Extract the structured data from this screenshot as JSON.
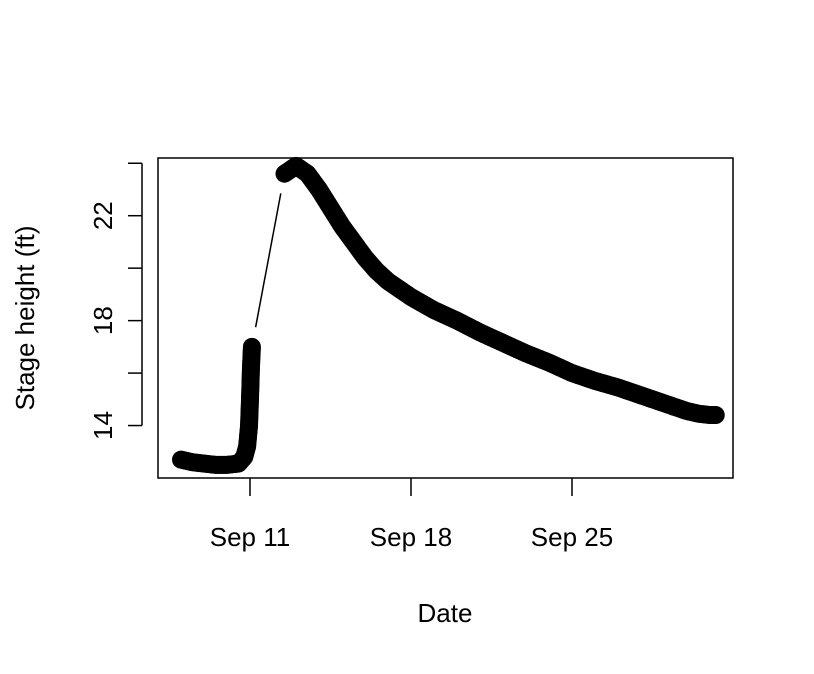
{
  "chart_data": {
    "type": "scatter",
    "xlabel": "Date",
    "ylabel": "Stage height (ft)",
    "x_unit": "date",
    "xlim": [
      "2017-09-07",
      "2017-10-02"
    ],
    "ylim": [
      12,
      24.2
    ],
    "x_ticks": [
      {
        "date": "2017-09-11",
        "label": "Sep 11"
      },
      {
        "date": "2017-09-18",
        "label": "Sep 18"
      },
      {
        "date": "2017-09-25",
        "label": "Sep 25"
      }
    ],
    "y_ticks": [
      {
        "value": 14,
        "label": "14"
      },
      {
        "value": 16,
        "label": ""
      },
      {
        "value": 18,
        "label": "18"
      },
      {
        "value": 20,
        "label": ""
      },
      {
        "value": 22,
        "label": "22"
      },
      {
        "value": 24,
        "label": ""
      }
    ],
    "grid": false,
    "legend": "none",
    "series": [
      {
        "points": [
          {
            "x": "2017-09-08 00:00",
            "y": 12.7
          },
          {
            "x": "2017-09-08 12:00",
            "y": 12.6
          },
          {
            "x": "2017-09-09 00:00",
            "y": 12.55
          },
          {
            "x": "2017-09-09 12:00",
            "y": 12.5
          },
          {
            "x": "2017-09-10 00:00",
            "y": 12.5
          },
          {
            "x": "2017-09-10 12:00",
            "y": 12.55
          },
          {
            "x": "2017-09-10 18:00",
            "y": 12.8
          },
          {
            "x": "2017-09-10 21:00",
            "y": 13.2
          },
          {
            "x": "2017-09-10 23:00",
            "y": 14.0
          },
          {
            "x": "2017-09-11 00:00",
            "y": 15.0
          },
          {
            "x": "2017-09-11 01:00",
            "y": 16.2
          },
          {
            "x": "2017-09-11 02:00",
            "y": 17.0
          },
          {
            "x": "2017-09-12 12:00",
            "y": 23.6
          },
          {
            "x": "2017-09-13 00:00",
            "y": 23.9
          },
          {
            "x": "2017-09-13 12:00",
            "y": 23.6
          },
          {
            "x": "2017-09-14 00:00",
            "y": 23.0
          },
          {
            "x": "2017-09-14 12:00",
            "y": 22.3
          },
          {
            "x": "2017-09-15 00:00",
            "y": 21.6
          },
          {
            "x": "2017-09-15 12:00",
            "y": 21.0
          },
          {
            "x": "2017-09-16 00:00",
            "y": 20.4
          },
          {
            "x": "2017-09-16 12:00",
            "y": 19.9
          },
          {
            "x": "2017-09-17 00:00",
            "y": 19.5
          },
          {
            "x": "2017-09-17 12:00",
            "y": 19.2
          },
          {
            "x": "2017-09-18 00:00",
            "y": 18.9
          },
          {
            "x": "2017-09-19 00:00",
            "y": 18.4
          },
          {
            "x": "2017-09-20 00:00",
            "y": 18.0
          },
          {
            "x": "2017-09-21 00:00",
            "y": 17.55
          },
          {
            "x": "2017-09-22 00:00",
            "y": 17.15
          },
          {
            "x": "2017-09-23 00:00",
            "y": 16.75
          },
          {
            "x": "2017-09-24 00:00",
            "y": 16.4
          },
          {
            "x": "2017-09-25 00:00",
            "y": 16.0
          },
          {
            "x": "2017-09-26 00:00",
            "y": 15.7
          },
          {
            "x": "2017-09-27 00:00",
            "y": 15.45
          },
          {
            "x": "2017-09-28 00:00",
            "y": 15.15
          },
          {
            "x": "2017-09-29 00:00",
            "y": 14.85
          },
          {
            "x": "2017-09-30 00:00",
            "y": 14.55
          },
          {
            "x": "2017-09-30 12:00",
            "y": 14.45
          },
          {
            "x": "2017-10-01 00:00",
            "y": 14.4
          },
          {
            "x": "2017-10-01 06:00",
            "y": 14.4
          }
        ],
        "color": "#000000"
      }
    ]
  }
}
